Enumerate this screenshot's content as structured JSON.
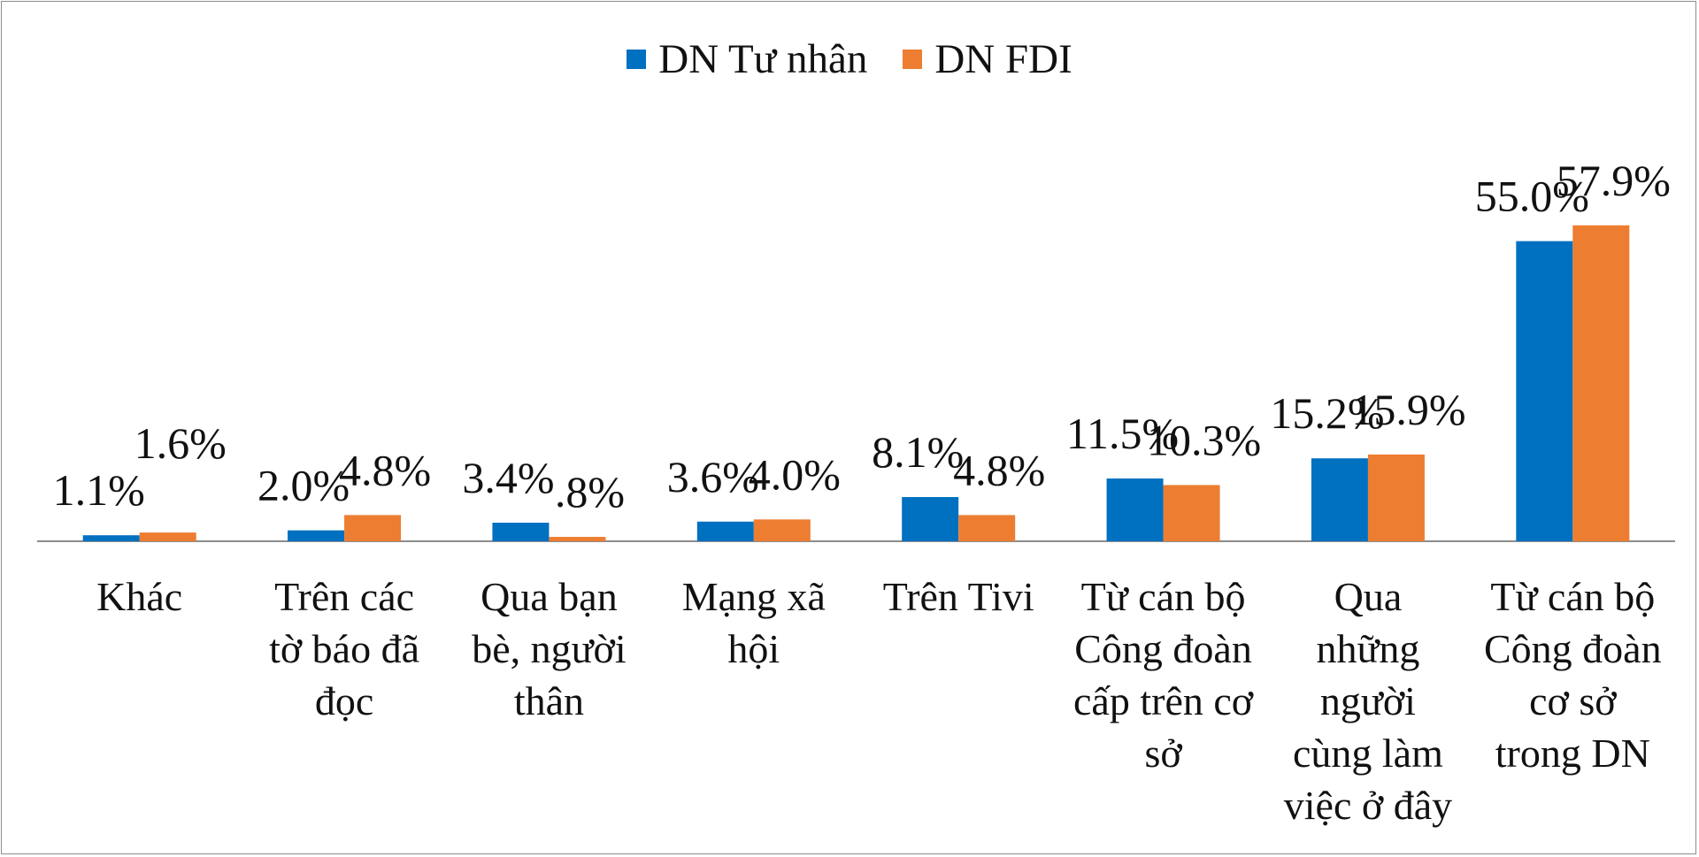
{
  "chart_data": {
    "type": "bar",
    "title": "",
    "xlabel": "",
    "ylabel": "",
    "ylim": [
      0,
      60
    ],
    "grid": false,
    "legend_position": "top-center",
    "categories": [
      "Khác",
      "Trên các tờ báo đã đọc",
      "Qua bạn bè, người thân",
      "Mạng xã hội",
      "Trên Tivi",
      "Từ cán bộ Công đoàn cấp trên cơ sở",
      "Qua những người cùng làm việc ở đây",
      "Từ cán bộ Công đoàn cơ sở trong DN"
    ],
    "category_lines": [
      [
        "Khác"
      ],
      [
        "Trên các",
        "tờ báo đã",
        "đọc"
      ],
      [
        "Qua bạn",
        "bè, người",
        "thân"
      ],
      [
        "Mạng xã",
        "hội"
      ],
      [
        "Trên Tivi"
      ],
      [
        "Từ cán bộ",
        "Công đoàn",
        "cấp trên cơ",
        "sở"
      ],
      [
        "Qua",
        "những",
        "người",
        "cùng làm",
        "việc ở đây"
      ],
      [
        "Từ cán bộ",
        "Công đoàn",
        "cơ sở",
        "trong DN"
      ]
    ],
    "series": [
      {
        "name": "DN Tư nhân",
        "color": "#0070C0",
        "values": [
          1.1,
          2.0,
          3.4,
          3.6,
          8.1,
          11.5,
          15.2,
          55.0
        ],
        "labels": [
          "1.1%",
          "2.0%",
          "3.4%",
          "3.6%",
          "8.1%",
          "11.5%",
          "15.2%",
          "55.0%"
        ]
      },
      {
        "name": "DN FDI",
        "color": "#ED7D31",
        "values": [
          1.6,
          4.8,
          0.8,
          4.0,
          4.8,
          10.3,
          15.9,
          57.9
        ],
        "labels": [
          "1.6%",
          "4.8%",
          ".8%",
          "4.0%",
          "4.8%",
          "10.3%",
          "15.9%",
          "57.9%"
        ]
      }
    ]
  }
}
